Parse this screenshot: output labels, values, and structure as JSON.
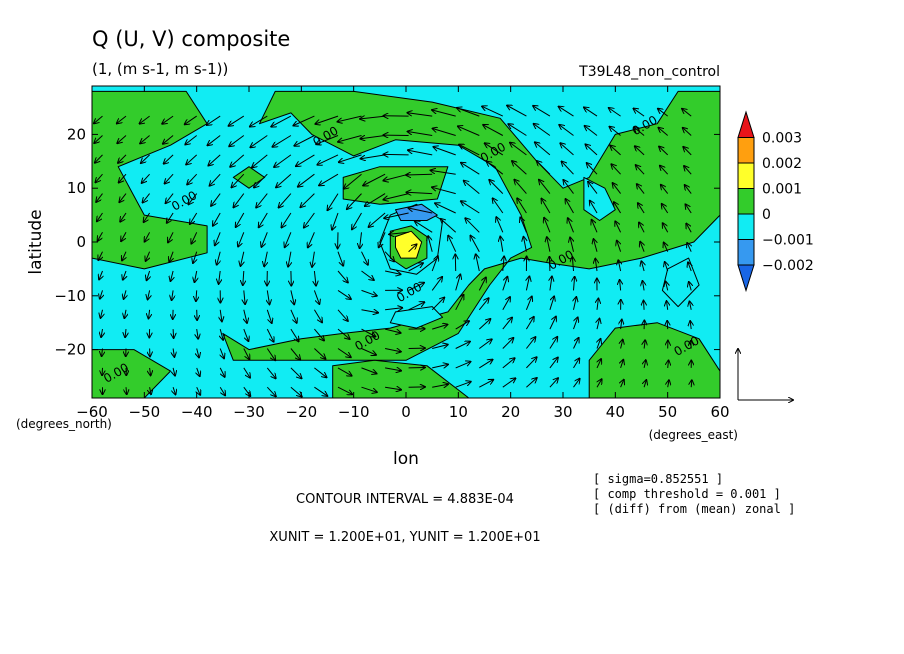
{
  "header": {
    "title": "Q (U, V) composite",
    "units": "(1, (m s-1, m s-1))",
    "experiment": "T39L48_non_control"
  },
  "colorbar": {
    "levels": [
      {
        "label": "0.003",
        "color": "#e8141a"
      },
      {
        "label": "0.002",
        "color": "#ff9f0f"
      },
      {
        "label": "0.001",
        "color": "#ffff2a"
      },
      {
        "label": "0",
        "color": "#33cc2b"
      },
      {
        "label": "−0.001",
        "color": "#11ecf3"
      },
      {
        "label": "−0.002",
        "color": "#3699f0"
      }
    ],
    "under_color": "#1866e6"
  },
  "footer": {
    "contour_interval": "CONTOUR INTERVAL = 4.883E-04",
    "vector_units": "XUNIT = 1.200E+01, YUNIT = 1.200E+01",
    "sigma": "[ sigma=0.852551 ]",
    "threshold": "[ comp threshold = 0.001 ]",
    "diff": "[ (diff) from (mean) zonal ]"
  },
  "chart_data": {
    "type": "heatmap",
    "title": "Q (U, V) composite",
    "subtitle": "(1, (m s-1, m s-1))",
    "xlabel": "lon",
    "ylabel": "latitude",
    "xunit_label": "(degrees_east)",
    "yunit_label": "(degrees_north)",
    "xlim": [
      -60,
      60
    ],
    "ylim": [
      -29,
      29
    ],
    "xticks": [
      -60,
      -50,
      -40,
      -30,
      -20,
      -10,
      0,
      10,
      20,
      30,
      40,
      50,
      60
    ],
    "yticks": [
      -20,
      -10,
      0,
      10,
      20
    ],
    "contour_labels": [
      {
        "text": "0.00",
        "lon": -42,
        "lat": 7
      },
      {
        "text": "0.00",
        "lon": -15,
        "lat": 19
      },
      {
        "text": "0.00",
        "lon": 17,
        "lat": 16
      },
      {
        "text": "0.00",
        "lon": 46,
        "lat": 21
      },
      {
        "text": "0.00",
        "lon": 30,
        "lat": -4
      },
      {
        "text": "0.00",
        "lon": 1,
        "lat": -10
      },
      {
        "text": "0.00",
        "lon": -7,
        "lat": -19
      },
      {
        "text": "0.00",
        "lon": 54,
        "lat": -20
      },
      {
        "text": "0.00",
        "lon": -55,
        "lat": -25
      }
    ],
    "fields": {
      "background": "cyan",
      "green_regions": [
        {
          "name": "west-north",
          "points": [
            [
              -60,
              28
            ],
            [
              -42,
              28
            ],
            [
              -38,
              22
            ],
            [
              -45,
              18
            ],
            [
              -55,
              14
            ],
            [
              -50,
              5
            ],
            [
              -38,
              3
            ],
            [
              -38,
              -2
            ],
            [
              -50,
              -5
            ],
            [
              -60,
              -3
            ]
          ]
        },
        {
          "name": "north-arc",
          "points": [
            [
              -25,
              28
            ],
            [
              -10,
              28
            ],
            [
              5,
              26
            ],
            [
              18,
              23
            ],
            [
              25,
              15
            ],
            [
              30,
              10
            ],
            [
              35,
              12
            ],
            [
              40,
              20
            ],
            [
              48,
              22
            ],
            [
              52,
              28
            ],
            [
              60,
              28
            ],
            [
              60,
              5
            ],
            [
              55,
              0
            ],
            [
              45,
              -3
            ],
            [
              35,
              -5
            ],
            [
              28,
              -4
            ],
            [
              22,
              -3
            ],
            [
              15,
              -5
            ],
            [
              12,
              -8
            ],
            [
              8,
              -13
            ],
            [
              -3,
              -16
            ],
            [
              -12,
              -17
            ],
            [
              -20,
              -18
            ],
            [
              -30,
              -20
            ],
            [
              -35,
              -17
            ],
            [
              -33,
              -22
            ],
            [
              -22,
              -22
            ],
            [
              -10,
              -22
            ],
            [
              0,
              -22
            ],
            [
              10,
              -17
            ],
            [
              16,
              -8
            ],
            [
              20,
              -3
            ],
            [
              24,
              -1
            ],
            [
              22,
              5
            ],
            [
              17,
              14
            ],
            [
              10,
              18
            ],
            [
              -2,
              19
            ],
            [
              -10,
              16
            ],
            [
              -18,
              20
            ],
            [
              -22,
              24
            ],
            [
              -28,
              22
            ]
          ]
        },
        {
          "name": "west-south",
          "points": [
            [
              -60,
              -20
            ],
            [
              -52,
              -20
            ],
            [
              -45,
              -24
            ],
            [
              -50,
              -29
            ],
            [
              -60,
              -29
            ]
          ]
        },
        {
          "name": "south-east",
          "points": [
            [
              35,
              -29
            ],
            [
              35,
              -22
            ],
            [
              40,
              -16
            ],
            [
              48,
              -15
            ],
            [
              56,
              -18
            ],
            [
              60,
              -24
            ],
            [
              60,
              -29
            ]
          ]
        },
        {
          "name": "south-mid",
          "points": [
            [
              -14,
              -23
            ],
            [
              -6,
              -22
            ],
            [
              4,
              -23
            ],
            [
              12,
              -29
            ],
            [
              -14,
              -29
            ]
          ]
        },
        {
          "name": "small-west",
          "points": [
            [
              -33,
              12
            ],
            [
              -30,
              10
            ],
            [
              -27,
              12
            ],
            [
              -30,
              14
            ]
          ]
        },
        {
          "name": "small-center",
          "points": [
            [
              -12,
              12
            ],
            [
              -5,
              14
            ],
            [
              8,
              14
            ],
            [
              6,
              8
            ],
            [
              -5,
              7
            ],
            [
              -12,
              8
            ]
          ]
        }
      ],
      "cyan_holes": [
        {
          "name": "hole-east",
          "points": [
            [
              34,
              12
            ],
            [
              38,
              10
            ],
            [
              40,
              6
            ],
            [
              37,
              4
            ],
            [
              34,
              6
            ]
          ]
        },
        {
          "name": "hole-center",
          "points": [
            [
              -3,
              5
            ],
            [
              2,
              7
            ],
            [
              7,
              4
            ],
            [
              6,
              -3
            ],
            [
              2,
              -6
            ],
            [
              -3,
              -5
            ],
            [
              -5,
              0
            ]
          ]
        },
        {
          "name": "hole-southeast",
          "points": [
            [
              50,
              -5
            ],
            [
              54,
              -3
            ],
            [
              56,
              -8
            ],
            [
              52,
              -12
            ],
            [
              49,
              -9
            ]
          ]
        },
        {
          "name": "hole-southmid",
          "points": [
            [
              -2,
              -13
            ],
            [
              5,
              -12
            ],
            [
              7,
              -14
            ],
            [
              2,
              -16
            ],
            [
              -3,
              -15
            ]
          ]
        }
      ],
      "blue_regions": [
        {
          "name": "blue-north",
          "points": [
            [
              -2,
              6
            ],
            [
              3,
              7
            ],
            [
              6,
              5
            ],
            [
              4,
              4
            ],
            [
              -1,
              4
            ]
          ]
        }
      ],
      "max_regions": [
        {
          "name": "core-green",
          "points": [
            [
              -3,
              2
            ],
            [
              1,
              3
            ],
            [
              4,
              1
            ],
            [
              4,
              -3
            ],
            [
              0,
              -5
            ],
            [
              -3,
              -3
            ]
          ],
          "level": "0"
        },
        {
          "name": "core-yellow",
          "points": [
            [
              -2,
              1
            ],
            [
              1,
              2
            ],
            [
              3,
              0
            ],
            [
              2,
              -3
            ],
            [
              -1,
              -3
            ],
            [
              -2,
              -1
            ]
          ],
          "level": "0.001"
        }
      ]
    }
  }
}
